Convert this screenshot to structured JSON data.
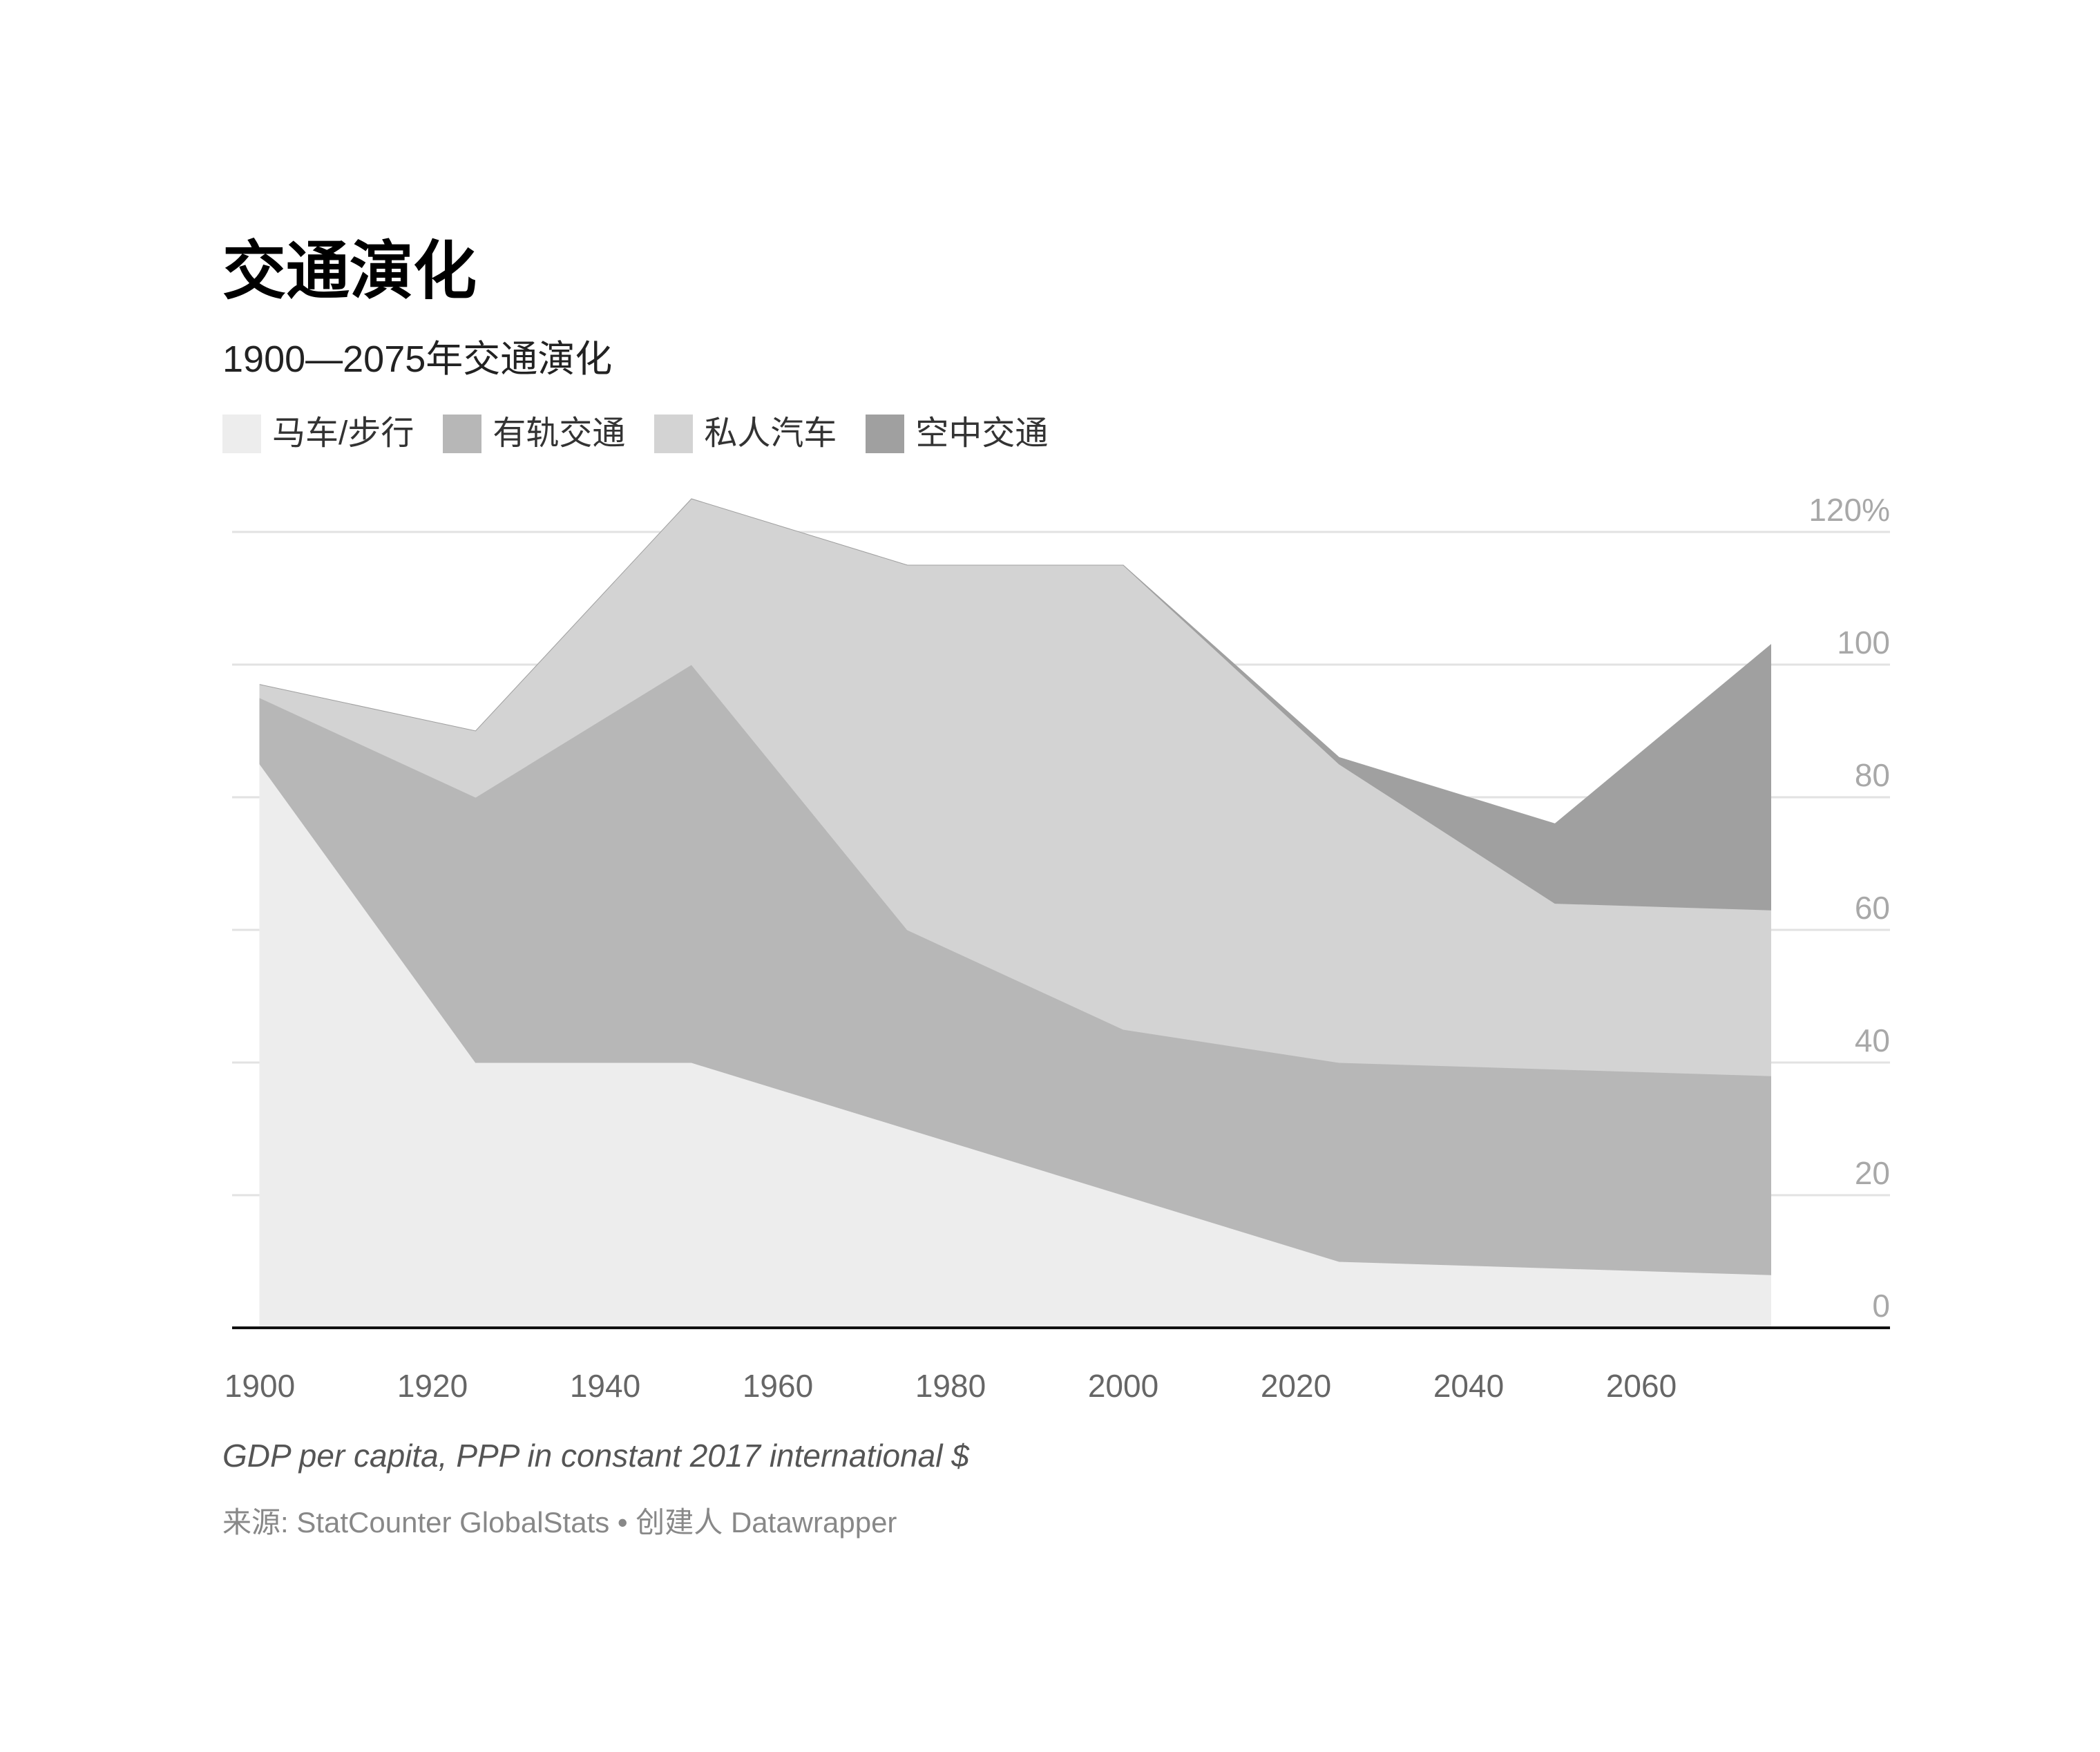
{
  "chart": {
    "title": "交通演化",
    "subtitle": "1900—2075年交通演化",
    "notes": "GDP per capita, PPP in constant 2017 international $",
    "source": "来源: StatCounter GlobalStats • 创建人 Datawrapper"
  },
  "chart_data": {
    "type": "area",
    "stacked": true,
    "x": [
      1900,
      1925,
      1950,
      1975,
      2000,
      2025,
      2050,
      2075
    ],
    "series": [
      {
        "name": "马车/步行",
        "color": "#ededed",
        "values": [
          85,
          40,
          40,
          30,
          20,
          10,
          9,
          8
        ]
      },
      {
        "name": "有轨交通",
        "color": "#b7b7b7",
        "values": [
          10,
          40,
          60,
          30,
          25,
          30,
          30,
          30
        ]
      },
      {
        "name": "私人汽车",
        "color": "#d3d3d3",
        "values": [
          2,
          10,
          25,
          55,
          70,
          45,
          25,
          25
        ]
      },
      {
        "name": "空中交通",
        "color": "#a0a0a0",
        "values": [
          0,
          0,
          0,
          0,
          0,
          1,
          12,
          40
        ]
      }
    ],
    "x_ticks": [
      "1900",
      "1920",
      "1940",
      "1960",
      "1980",
      "2000",
      "2020",
      "2040",
      "2060"
    ],
    "x_tick_values": [
      1900,
      1920,
      1940,
      1960,
      1980,
      2000,
      2020,
      2040,
      2060
    ],
    "y_ticks": [
      "0",
      "20",
      "40",
      "60",
      "80",
      "100",
      "120%"
    ],
    "y_tick_values": [
      0,
      20,
      40,
      60,
      80,
      100,
      120
    ],
    "xlim": [
      1900,
      2075
    ],
    "ylim": [
      0,
      125
    ],
    "grid": true,
    "y_axis_position": "right",
    "legend_position": "top-left"
  }
}
